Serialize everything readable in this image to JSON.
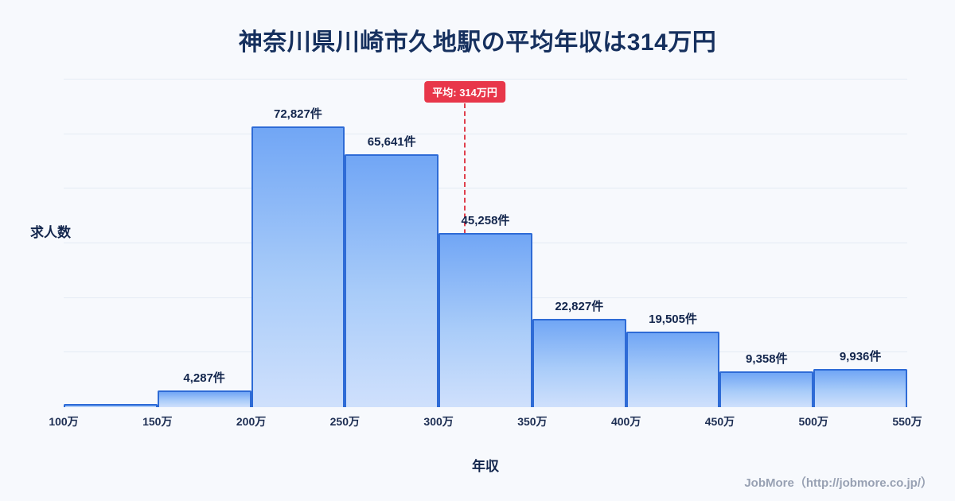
{
  "title": "神奈川県川崎市久地駅の平均年収は314万円",
  "footer": {
    "credit": "JobMore（http://jobmore.co.jp/）"
  },
  "chart_data": {
    "type": "bar",
    "title": "神奈川県川崎市久地駅の平均年収は314万円",
    "xlabel": "年収",
    "ylabel": "求人数",
    "x_ticks": [
      "100万",
      "150万",
      "200万",
      "250万",
      "300万",
      "350万",
      "400万",
      "450万",
      "500万",
      "550万"
    ],
    "bin_edges_man_yen": [
      100,
      150,
      200,
      250,
      300,
      350,
      400,
      450,
      500,
      550
    ],
    "values": [
      800,
      4287,
      72827,
      65641,
      45258,
      22827,
      19505,
      9358,
      9936
    ],
    "bar_labels": [
      "",
      "4,287件",
      "72,827件",
      "65,641件",
      "45,258件",
      "22,827件",
      "19,505件",
      "9,358件",
      "9,936件"
    ],
    "ylim": [
      0,
      85000
    ],
    "grid": true,
    "legend": "none",
    "average": {
      "value_man_yen": 314,
      "label": "平均: 314万円"
    },
    "colors": {
      "bar_fill_top": "#71a6f5",
      "bar_fill_bottom": "#cfe0fc",
      "bar_border": "#2e6bd6",
      "average_line": "#e0404e",
      "average_badge_bg": "#e8374a",
      "title_text": "#16305e",
      "background": "#f7f9fd",
      "gridline": "#e4ebf4"
    }
  }
}
